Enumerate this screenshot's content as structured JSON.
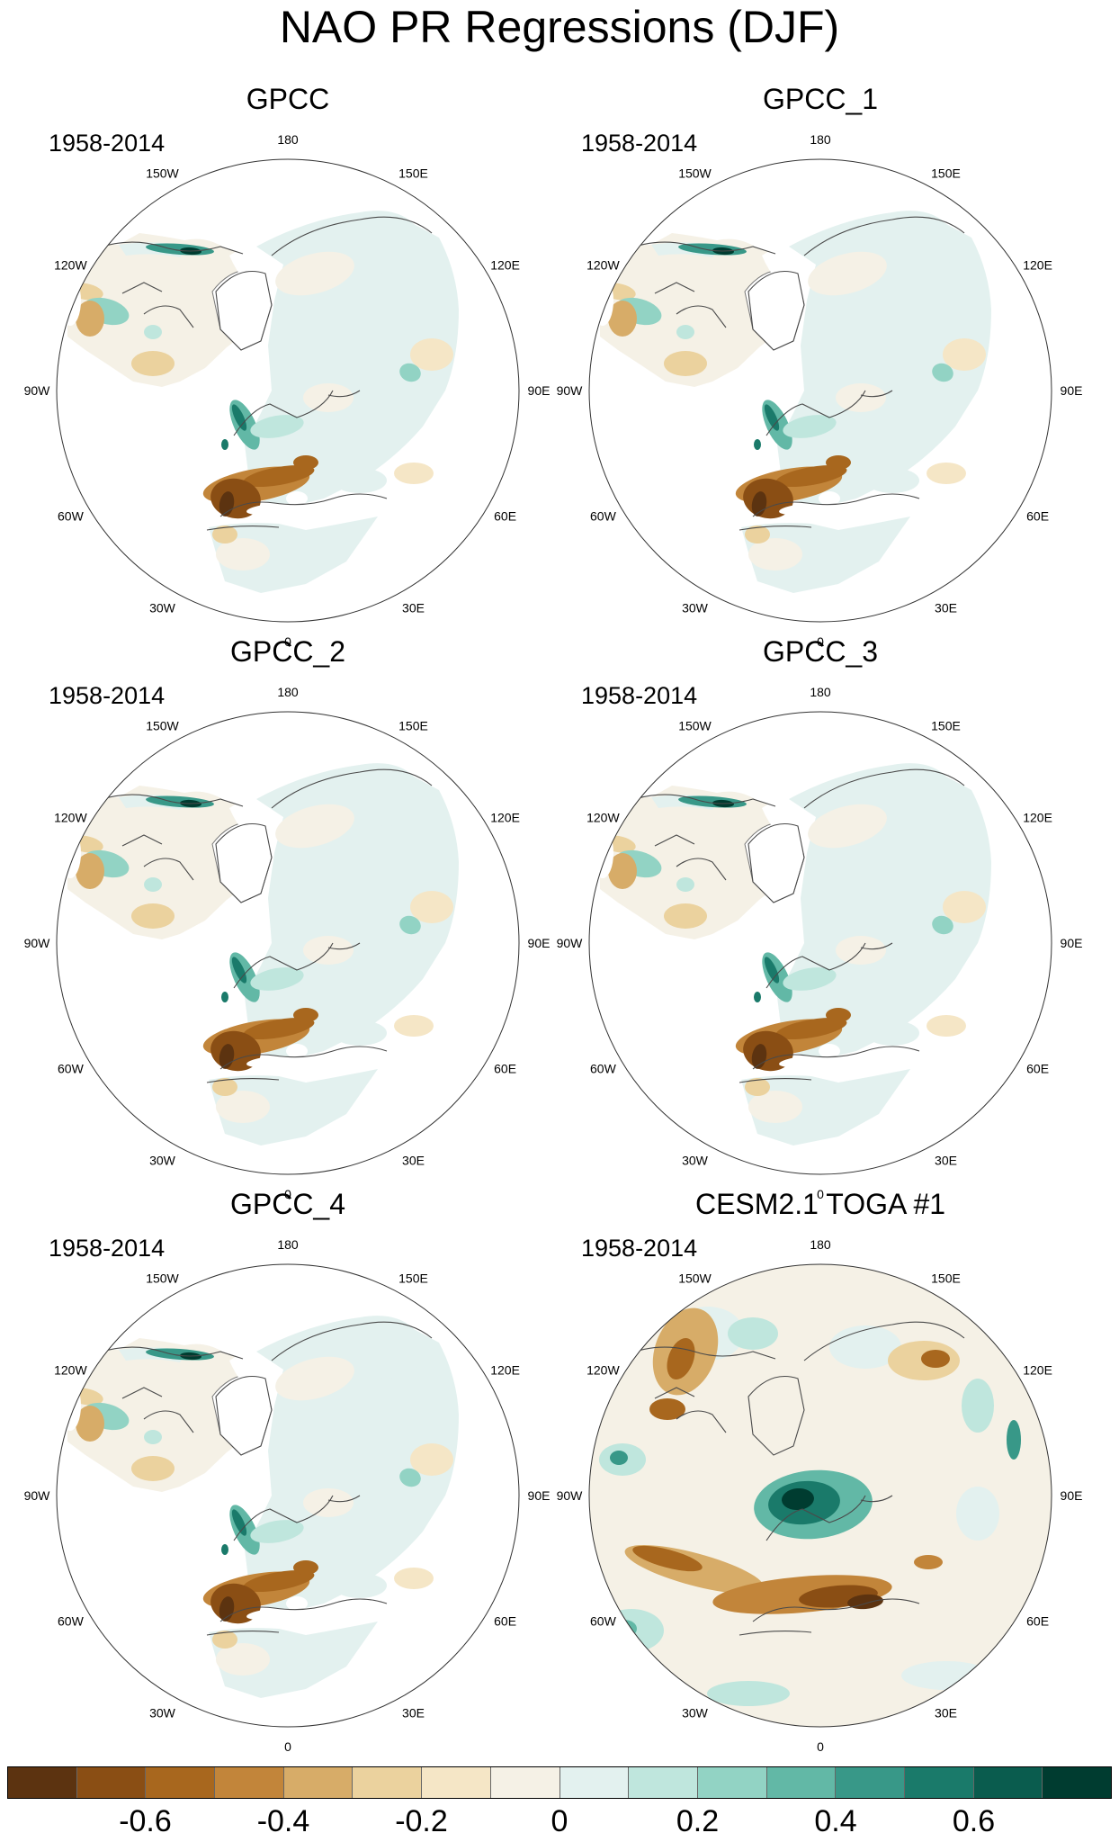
{
  "title": "NAO PR Regressions (DJF)",
  "panels": [
    {
      "name": "GPCC",
      "period": "1958-2014",
      "type": "obs"
    },
    {
      "name": "GPCC_1",
      "period": "1958-2014",
      "type": "obs"
    },
    {
      "name": "GPCC_2",
      "period": "1958-2014",
      "type": "obs"
    },
    {
      "name": "GPCC_3",
      "period": "1958-2014",
      "type": "obs"
    },
    {
      "name": "GPCC_4",
      "period": "1958-2014",
      "type": "obs"
    },
    {
      "name": "CESM2.1 TOGA #1",
      "period": "1958-2014",
      "type": "model"
    }
  ],
  "longitude_labels": [
    "180",
    "150E",
    "120E",
    "90E",
    "60E",
    "30E",
    "0",
    "30W",
    "60W",
    "90W",
    "120W",
    "150W"
  ],
  "colorbar": {
    "colors": [
      "#5c3310",
      "#8a4e14",
      "#a8671e",
      "#c2853a",
      "#d7ac68",
      "#ebd29e",
      "#f5e6c6",
      "#f5f1e6",
      "#e3f1ef",
      "#bfe6dd",
      "#92d3c4",
      "#62b8a6",
      "#389888",
      "#1a7a6a",
      "#0a5c4e",
      "#003c30"
    ],
    "labels": [
      "-0.6",
      "-0.4",
      "-0.2",
      "0",
      "0.2",
      "0.4",
      "0.6"
    ],
    "label_values": [
      -0.6,
      -0.4,
      -0.2,
      0,
      0.2,
      0.4,
      0.6
    ],
    "min": -0.8,
    "max": 0.8
  }
}
